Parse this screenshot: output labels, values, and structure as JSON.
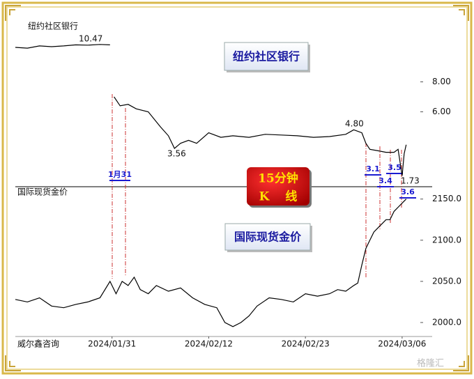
{
  "chart_data": [
    {
      "type": "line",
      "title": "纽约社区银行",
      "x": [
        0,
        3,
        6,
        9,
        12,
        15,
        18,
        21,
        23.5,
        24,
        24.5,
        26,
        28,
        30,
        33,
        36,
        38,
        39.5,
        41,
        43,
        45,
        48,
        51,
        54,
        58,
        62,
        66,
        70,
        74,
        78,
        82,
        84,
        86,
        87,
        88,
        90,
        92,
        94,
        95,
        96,
        96.5,
        97
      ],
      "values": [
        10.3,
        10.25,
        10.4,
        10.35,
        10.4,
        10.47,
        10.45,
        10.5,
        10.47,
        null,
        7.0,
        6.4,
        6.5,
        6.2,
        6.0,
        5.0,
        4.4,
        3.56,
        3.9,
        4.1,
        3.9,
        4.6,
        4.3,
        4.4,
        4.3,
        4.5,
        4.45,
        4.4,
        4.3,
        4.35,
        4.5,
        4.8,
        4.6,
        3.9,
        3.5,
        3.4,
        3.3,
        3.3,
        3.5,
        1.73,
        3.2,
        3.8
      ],
      "color": "#000000",
      "xlim": [
        0,
        100
      ],
      "ylim": [
        1,
        13
      ],
      "yticks": [
        {
          "value": 6,
          "label": "6.00"
        },
        {
          "value": 8,
          "label": "8.00"
        }
      ],
      "annotations": [
        "10.47",
        "3.56",
        "4.80",
        "1.73"
      ]
    },
    {
      "type": "line",
      "title": "国际现货金价",
      "x": [
        0,
        3,
        6,
        9,
        12,
        15,
        18,
        21,
        23.5,
        25,
        26.5,
        28,
        29.5,
        31,
        33,
        35,
        38,
        41,
        44,
        47,
        50,
        52,
        54,
        56,
        58,
        60,
        63,
        66,
        69,
        72,
        75,
        78,
        80,
        82,
        84,
        85,
        86,
        87,
        88,
        89,
        90,
        91,
        92,
        93,
        94,
        95,
        96,
        97
      ],
      "values": [
        2028,
        2025,
        2030,
        2020,
        2018,
        2022,
        2025,
        2030,
        2050,
        2035,
        2050,
        2045,
        2055,
        2040,
        2035,
        2045,
        2038,
        2042,
        2030,
        2022,
        2018,
        2000,
        1995,
        2000,
        2008,
        2020,
        2030,
        2028,
        2025,
        2035,
        2032,
        2035,
        2040,
        2038,
        2045,
        2048,
        2070,
        2090,
        2100,
        2110,
        2115,
        2120,
        2125,
        2125,
        2135,
        2140,
        2145,
        2150
      ],
      "color": "#000000",
      "xlim": [
        0,
        100
      ],
      "ylim": [
        1983,
        2165
      ],
      "yticks": [
        {
          "value": 2000,
          "label": "2000.0"
        },
        {
          "value": 2050,
          "label": "2050.0"
        },
        {
          "value": 2100,
          "label": "2100.0"
        },
        {
          "value": 2150,
          "label": "2150.0"
        }
      ],
      "xticks": [
        {
          "value": 24,
          "label": "2024/01/31"
        },
        {
          "value": 48,
          "label": "2024/02/12"
        },
        {
          "value": 72,
          "label": "2024/02/23"
        },
        {
          "value": 96,
          "label": "2024/03/06"
        }
      ]
    }
  ],
  "overlay": {
    "kline_title": [
      "15分钟",
      "K　 线"
    ],
    "date_markers": [
      "1月31",
      "3.1",
      "3.4",
      "3.5",
      "3.6"
    ],
    "source": "威尔鑫咨询",
    "watermark": "格隆汇"
  }
}
